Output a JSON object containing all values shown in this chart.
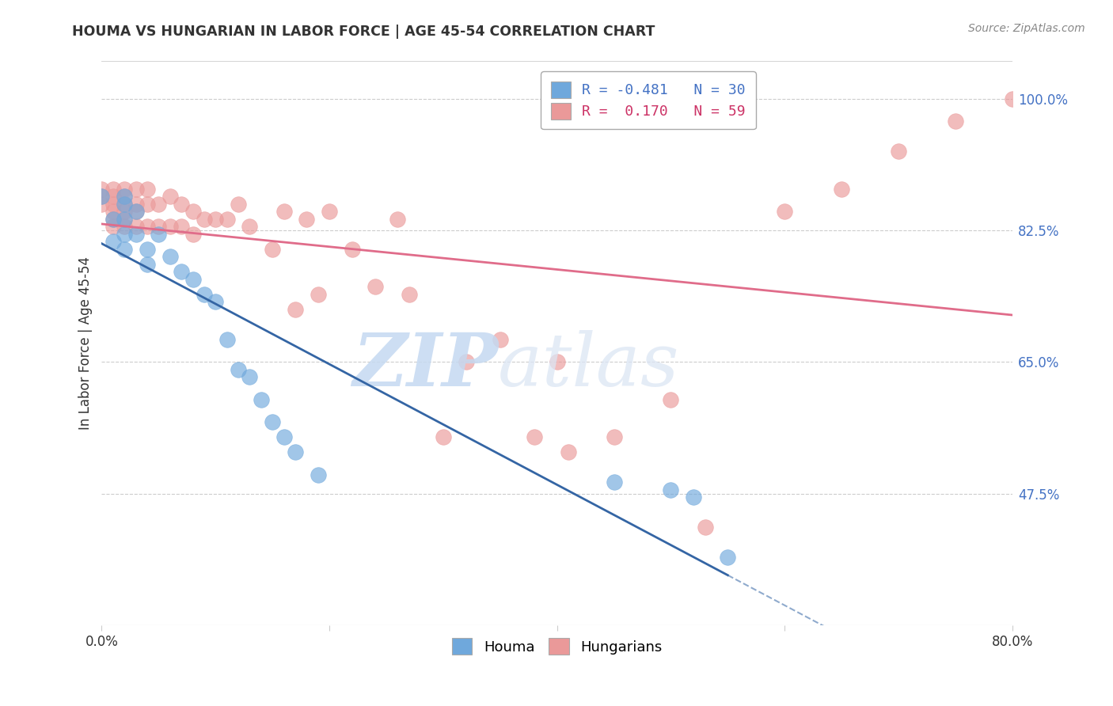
{
  "title": "HOUMA VS HUNGARIAN IN LABOR FORCE | AGE 45-54 CORRELATION CHART",
  "source": "Source: ZipAtlas.com",
  "ylabel": "In Labor Force | Age 45-54",
  "xlim": [
    0.0,
    0.8
  ],
  "ylim": [
    0.3,
    1.05
  ],
  "yticks": [
    0.475,
    0.65,
    0.825,
    1.0
  ],
  "ytick_labels": [
    "47.5%",
    "65.0%",
    "82.5%",
    "100.0%"
  ],
  "xticks": [
    0.0,
    0.2,
    0.4,
    0.6,
    0.8
  ],
  "xtick_labels": [
    "0.0%",
    "",
    "",
    "",
    "80.0%"
  ],
  "houma_R": -0.481,
  "houma_N": 30,
  "hungarian_R": 0.17,
  "hungarian_N": 59,
  "houma_color": "#6fa8dc",
  "hungarian_color": "#ea9999",
  "houma_line_color": "#3465a4",
  "hungarian_line_color": "#e06c8a",
  "bg_color": "#ffffff",
  "grid_color": "#cccccc",
  "houma_x": [
    0.0,
    0.01,
    0.01,
    0.02,
    0.02,
    0.02,
    0.02,
    0.02,
    0.03,
    0.03,
    0.04,
    0.04,
    0.05,
    0.06,
    0.07,
    0.08,
    0.09,
    0.1,
    0.11,
    0.12,
    0.13,
    0.14,
    0.15,
    0.16,
    0.17,
    0.19,
    0.45,
    0.5,
    0.52,
    0.55
  ],
  "houma_y": [
    0.87,
    0.84,
    0.81,
    0.87,
    0.86,
    0.84,
    0.82,
    0.8,
    0.85,
    0.82,
    0.8,
    0.78,
    0.82,
    0.79,
    0.77,
    0.76,
    0.74,
    0.73,
    0.68,
    0.64,
    0.63,
    0.6,
    0.57,
    0.55,
    0.53,
    0.5,
    0.49,
    0.48,
    0.47,
    0.39
  ],
  "hungarian_x": [
    0.0,
    0.0,
    0.0,
    0.01,
    0.01,
    0.01,
    0.01,
    0.01,
    0.01,
    0.02,
    0.02,
    0.02,
    0.02,
    0.02,
    0.02,
    0.03,
    0.03,
    0.03,
    0.03,
    0.04,
    0.04,
    0.04,
    0.05,
    0.05,
    0.06,
    0.06,
    0.07,
    0.07,
    0.08,
    0.08,
    0.09,
    0.1,
    0.11,
    0.12,
    0.13,
    0.15,
    0.16,
    0.17,
    0.18,
    0.19,
    0.2,
    0.22,
    0.24,
    0.26,
    0.27,
    0.3,
    0.32,
    0.35,
    0.38,
    0.4,
    0.41,
    0.45,
    0.5,
    0.53,
    0.6,
    0.65,
    0.7,
    0.75,
    0.8
  ],
  "hungarian_y": [
    0.88,
    0.87,
    0.86,
    0.88,
    0.87,
    0.86,
    0.85,
    0.84,
    0.83,
    0.88,
    0.87,
    0.86,
    0.85,
    0.84,
    0.83,
    0.88,
    0.86,
    0.85,
    0.83,
    0.88,
    0.86,
    0.83,
    0.86,
    0.83,
    0.87,
    0.83,
    0.86,
    0.83,
    0.85,
    0.82,
    0.84,
    0.84,
    0.84,
    0.86,
    0.83,
    0.8,
    0.85,
    0.72,
    0.84,
    0.74,
    0.85,
    0.8,
    0.75,
    0.84,
    0.74,
    0.55,
    0.65,
    0.68,
    0.55,
    0.65,
    0.53,
    0.55,
    0.6,
    0.43,
    0.85,
    0.88,
    0.93,
    0.97,
    1.0
  ],
  "watermark_zip": "ZIP",
  "watermark_atlas": "atlas",
  "legend_label_houma": "R = -0.481   N = 30",
  "legend_label_hungarian": "R =  0.170   N = 59",
  "legend_color_houma": "#4472c4",
  "legend_color_hungarian": "#cc3366"
}
